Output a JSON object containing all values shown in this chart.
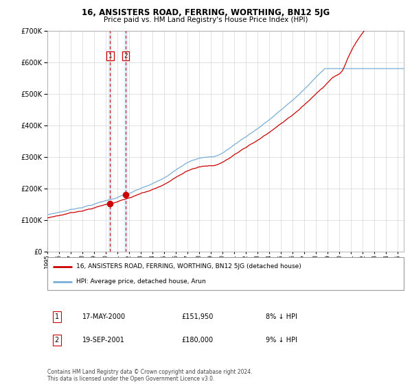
{
  "title": "16, ANSISTERS ROAD, FERRING, WORTHING, BN12 5JG",
  "subtitle": "Price paid vs. HM Land Registry's House Price Index (HPI)",
  "legend_label_red": "16, ANSISTERS ROAD, FERRING, WORTHING, BN12 5JG (detached house)",
  "legend_label_blue": "HPI: Average price, detached house, Arun",
  "transaction1_date": "17-MAY-2000",
  "transaction1_price": 151950,
  "transaction1_hpi": "8% ↓ HPI",
  "transaction2_date": "19-SEP-2001",
  "transaction2_price": 180000,
  "transaction2_hpi": "9% ↓ HPI",
  "footer": "Contains HM Land Registry data © Crown copyright and database right 2024.\nThis data is licensed under the Open Government Licence v3.0.",
  "color_red": "#cc0000",
  "color_blue": "#7aaed6",
  "color_vshade": "#ddeeff",
  "t1_year": 2000.37,
  "t2_year": 2001.71,
  "ylim_max": 700000,
  "year_start": 1995,
  "year_end": 2025
}
